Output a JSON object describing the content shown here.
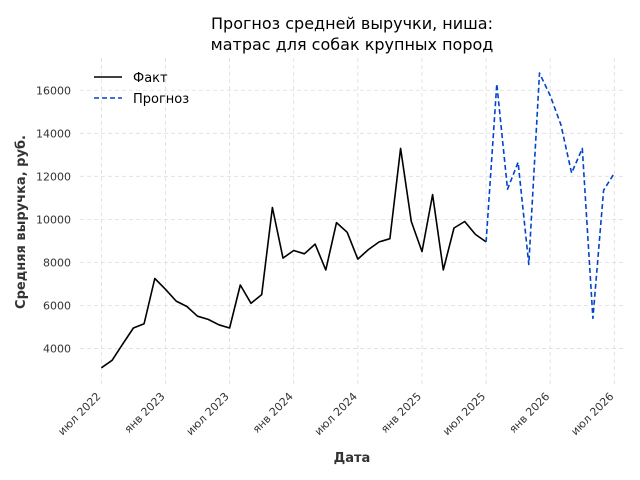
{
  "chart_data": {
    "type": "line",
    "title": [
      "Прогноз средней выручки, ниша:",
      "матрас для собак крупных пород"
    ],
    "xlabel": "Дата",
    "ylabel": "Средняя выручка, руб.",
    "x_ticks": [
      {
        "label": "июл 2022",
        "x": "2022-07"
      },
      {
        "label": "янв 2023",
        "x": "2023-01"
      },
      {
        "label": "июл 2023",
        "x": "2023-07"
      },
      {
        "label": "янв 2024",
        "x": "2024-01"
      },
      {
        "label": "июл 2024",
        "x": "2024-07"
      },
      {
        "label": "янв 2025",
        "x": "2025-01"
      },
      {
        "label": "июл 2025",
        "x": "2025-07"
      },
      {
        "label": "янв 2026",
        "x": "2026-01"
      },
      {
        "label": "июл 2026",
        "x": "2026-07"
      }
    ],
    "y_ticks": [
      4000,
      6000,
      8000,
      10000,
      12000,
      14000,
      16000
    ],
    "xlim": [
      "2022-05",
      "2026-08"
    ],
    "ylim": [
      2300,
      17500
    ],
    "grid": true,
    "legend_position": "top-left",
    "series": [
      {
        "name": "Факт",
        "style": "solid",
        "color": "#000000",
        "x": [
          "2022-07",
          "2022-08",
          "2022-09",
          "2022-10",
          "2022-11",
          "2022-12",
          "2023-01",
          "2023-02",
          "2023-03",
          "2023-04",
          "2023-05",
          "2023-06",
          "2023-07",
          "2023-08",
          "2023-09",
          "2023-10",
          "2023-11",
          "2023-12",
          "2024-01",
          "2024-02",
          "2024-03",
          "2024-04",
          "2024-05",
          "2024-06",
          "2024-07",
          "2024-08",
          "2024-09",
          "2024-10",
          "2024-11",
          "2024-12",
          "2025-01",
          "2025-02",
          "2025-03",
          "2025-04",
          "2025-05",
          "2025-06",
          "2025-07"
        ],
        "values": [
          3100,
          3450,
          4200,
          4950,
          5150,
          7250,
          6750,
          6200,
          5950,
          5500,
          5350,
          5100,
          4950,
          6950,
          6100,
          6500,
          10550,
          8200,
          8550,
          8400,
          8850,
          7650,
          9850,
          9400,
          8150,
          8600,
          8950,
          9100,
          13300,
          9900,
          8500,
          11150,
          7650,
          9600,
          9900,
          9300,
          8950
        ]
      },
      {
        "name": "Прогноз",
        "style": "dashed",
        "color": "#0044cc",
        "x": [
          "2025-07",
          "2025-08",
          "2025-09",
          "2025-10",
          "2025-11",
          "2025-12",
          "2026-01",
          "2026-02",
          "2026-03",
          "2026-04",
          "2026-05",
          "2026-06",
          "2026-07"
        ],
        "values": [
          8950,
          16300,
          11400,
          12650,
          7900,
          16800,
          15750,
          14400,
          12150,
          13300,
          5400,
          11350,
          12150
        ]
      }
    ]
  }
}
